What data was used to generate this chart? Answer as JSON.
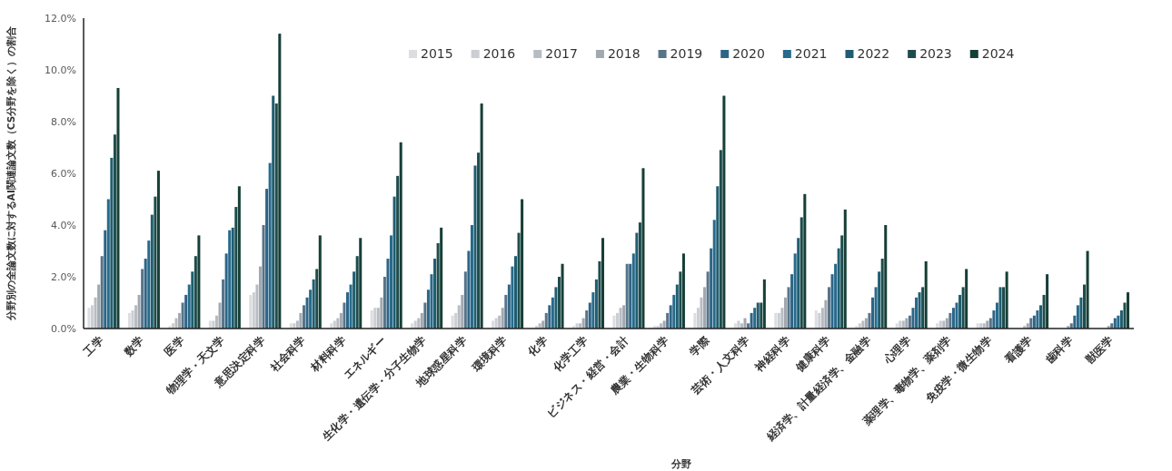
{
  "chart_data": {
    "type": "bar",
    "xlabel": "分野",
    "ylabel": "分野別の全論文数に対するAI関連論文数（CS分野を除く）の割合",
    "categories": [
      "工学",
      "数学",
      "医学",
      "物理学・天文学",
      "意思決定科学",
      "社会科学",
      "材料科学",
      "エネルギー",
      "生化学・遺伝学・分子生物学",
      "地球惑星科学",
      "環境科学",
      "化学",
      "化学工学",
      "ビジネス・経営・会計",
      "農業・生物科学",
      "学際",
      "芸術・人文科学",
      "神経科学",
      "健康科学",
      "経済学、計量経済学、金融学",
      "心理学",
      "薬理学、毒物学、薬剤学",
      "免疫学・微生物学",
      "看護学",
      "歯科学",
      "獣医学"
    ],
    "series": [
      {
        "name": "2015",
        "color": "#dcdde0",
        "values": [
          0.8,
          0.6,
          0.1,
          0.3,
          1.3,
          0.2,
          0.2,
          0.7,
          0.2,
          0.5,
          0.3,
          0.0,
          0.1,
          0.5,
          0.1,
          0.6,
          0.2,
          0.6,
          0.7,
          0.1,
          0.2,
          0.2,
          0.2,
          0.0,
          0.0,
          0.0
        ]
      },
      {
        "name": "2016",
        "color": "#cbced3",
        "values": [
          0.9,
          0.7,
          0.2,
          0.3,
          1.4,
          0.2,
          0.3,
          0.8,
          0.3,
          0.6,
          0.4,
          0.1,
          0.2,
          0.6,
          0.1,
          0.8,
          0.3,
          0.6,
          0.6,
          0.2,
          0.3,
          0.3,
          0.2,
          0.0,
          0.0,
          0.0
        ]
      },
      {
        "name": "2017",
        "color": "#b7bcc3",
        "values": [
          1.2,
          0.9,
          0.4,
          0.5,
          1.7,
          0.3,
          0.4,
          0.8,
          0.4,
          0.9,
          0.5,
          0.2,
          0.2,
          0.8,
          0.2,
          1.2,
          0.2,
          0.8,
          0.8,
          0.3,
          0.3,
          0.3,
          0.2,
          0.1,
          0.0,
          0.0
        ]
      },
      {
        "name": "2018",
        "color": "#a2a8b0",
        "values": [
          1.7,
          1.3,
          0.6,
          1.0,
          2.4,
          0.6,
          0.6,
          1.2,
          0.6,
          1.3,
          0.8,
          0.3,
          0.4,
          0.9,
          0.3,
          1.6,
          0.4,
          1.2,
          1.1,
          0.4,
          0.4,
          0.4,
          0.3,
          0.2,
          0.1,
          0.1
        ]
      },
      {
        "name": "2019",
        "color": "#577489",
        "values": [
          2.8,
          2.3,
          1.0,
          1.9,
          4.0,
          0.9,
          1.0,
          2.0,
          1.0,
          2.2,
          1.3,
          0.6,
          0.7,
          2.5,
          0.6,
          2.2,
          0.2,
          1.6,
          1.6,
          0.6,
          0.5,
          0.6,
          0.4,
          0.4,
          0.2,
          0.2
        ]
      },
      {
        "name": "2020",
        "color": "#2d6587",
        "values": [
          3.8,
          2.7,
          1.3,
          2.9,
          5.4,
          1.2,
          1.4,
          2.7,
          1.5,
          3.0,
          1.7,
          0.9,
          1.0,
          2.5,
          0.9,
          3.1,
          0.6,
          2.1,
          2.1,
          1.2,
          0.8,
          0.8,
          0.7,
          0.5,
          0.5,
          0.4
        ]
      },
      {
        "name": "2021",
        "color": "#276a8c",
        "values": [
          5.0,
          3.4,
          1.7,
          3.8,
          6.4,
          1.5,
          1.7,
          3.6,
          2.1,
          4.0,
          2.4,
          1.2,
          1.4,
          2.9,
          1.3,
          4.2,
          0.8,
          2.9,
          2.5,
          1.6,
          1.2,
          1.0,
          1.0,
          0.7,
          0.9,
          0.5
        ]
      },
      {
        "name": "2022",
        "color": "#1f5e70",
        "values": [
          6.6,
          4.4,
          2.2,
          3.9,
          9.0,
          1.9,
          2.2,
          5.1,
          2.7,
          6.3,
          2.8,
          1.6,
          1.9,
          3.7,
          1.7,
          5.5,
          1.0,
          3.5,
          3.1,
          2.2,
          1.4,
          1.3,
          1.6,
          0.9,
          1.2,
          0.7
        ]
      },
      {
        "name": "2023",
        "color": "#1e4c4c",
        "values": [
          7.5,
          5.1,
          2.8,
          4.7,
          8.7,
          2.3,
          2.8,
          5.9,
          3.3,
          6.8,
          3.7,
          2.0,
          2.6,
          4.1,
          2.2,
          6.9,
          1.0,
          4.3,
          3.6,
          2.7,
          1.6,
          1.6,
          1.6,
          1.3,
          1.7,
          1.0
        ]
      },
      {
        "name": "2024",
        "color": "#163f36",
        "values": [
          9.3,
          6.1,
          3.6,
          5.5,
          11.4,
          3.6,
          3.5,
          7.2,
          3.9,
          8.7,
          5.0,
          2.5,
          3.5,
          6.2,
          2.9,
          9.0,
          1.9,
          5.2,
          4.6,
          4.0,
          2.6,
          2.3,
          2.2,
          2.1,
          3.0,
          1.4
        ]
      }
    ],
    "ylim": [
      0,
      12
    ],
    "yticks": [
      {
        "value": 0,
        "label": "0.0%"
      },
      {
        "value": 2,
        "label": "2.0%"
      },
      {
        "value": 4,
        "label": "4.0%"
      },
      {
        "value": 6,
        "label": "6.0%"
      },
      {
        "value": 8,
        "label": "8.0%"
      },
      {
        "value": 10,
        "label": "10.0%"
      },
      {
        "value": 12,
        "label": "12.0%"
      }
    ],
    "legend": "top right"
  }
}
